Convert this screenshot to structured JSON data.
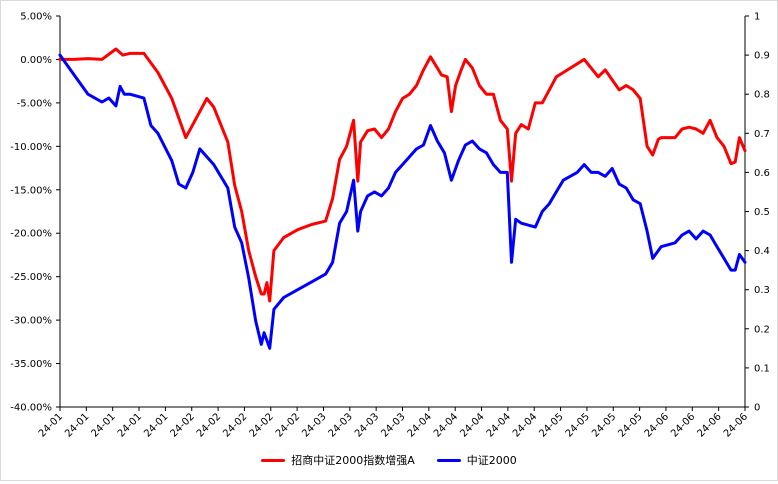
{
  "chart_data": {
    "type": "line",
    "grid": false,
    "legend_position": "bottom",
    "x_tick_labels": [
      "24-01",
      "24-01",
      "24-01",
      "24-01",
      "24-01",
      "24-02",
      "24-02",
      "24-02",
      "24-02",
      "24-02",
      "24-03",
      "24-03",
      "24-03",
      "24-03",
      "24-04",
      "24-04",
      "24-04",
      "24-04",
      "24-04",
      "24-05",
      "24-05",
      "24-05",
      "24-05",
      "24-06",
      "24-06",
      "24-06",
      "24-06"
    ],
    "y_left": {
      "ylim": [
        -0.4,
        0.05
      ],
      "ticks": [
        "5.00%",
        "0.00%",
        "-5.00%",
        "-10.00%",
        "-15.00%",
        "-20.00%",
        "-25.00%",
        "-30.00%",
        "-35.00%",
        "-40.00%"
      ]
    },
    "y_right": {
      "ylim": [
        0,
        1
      ],
      "ticks": [
        "1",
        "0.9",
        "0.8",
        "0.7",
        "0.6",
        "0.5",
        "0.4",
        "0.3",
        "0.2",
        "0.1",
        "0"
      ]
    },
    "series": [
      {
        "name": "招商中证2000指数增强A",
        "color": "#ff0000",
        "axis": "left",
        "points": [
          [
            0,
            0.0
          ],
          [
            1,
            0.0
          ],
          [
            2,
            0.001
          ],
          [
            3,
            0.0
          ],
          [
            4,
            0.012
          ],
          [
            4.5,
            0.005
          ],
          [
            5,
            0.007
          ],
          [
            6,
            0.007
          ],
          [
            7,
            -0.015
          ],
          [
            8,
            -0.045
          ],
          [
            9,
            -0.09
          ],
          [
            10,
            -0.06
          ],
          [
            10.5,
            -0.045
          ],
          [
            11,
            -0.055
          ],
          [
            12,
            -0.095
          ],
          [
            12.5,
            -0.145
          ],
          [
            13,
            -0.175
          ],
          [
            13.5,
            -0.22
          ],
          [
            14,
            -0.25
          ],
          [
            14.4,
            -0.27
          ],
          [
            14.6,
            -0.27
          ],
          [
            14.8,
            -0.257
          ],
          [
            15,
            -0.278
          ],
          [
            15.3,
            -0.22
          ],
          [
            16,
            -0.205
          ],
          [
            17,
            -0.196
          ],
          [
            18,
            -0.19
          ],
          [
            19,
            -0.186
          ],
          [
            19.5,
            -0.16
          ],
          [
            20,
            -0.115
          ],
          [
            20.5,
            -0.1
          ],
          [
            21,
            -0.07
          ],
          [
            21.3,
            -0.14
          ],
          [
            21.5,
            -0.095
          ],
          [
            22,
            -0.082
          ],
          [
            22.5,
            -0.08
          ],
          [
            23,
            -0.09
          ],
          [
            23.5,
            -0.08
          ],
          [
            24,
            -0.06
          ],
          [
            24.5,
            -0.045
          ],
          [
            25,
            -0.04
          ],
          [
            25.5,
            -0.03
          ],
          [
            26,
            -0.012
          ],
          [
            26.5,
            0.003
          ],
          [
            27,
            -0.01
          ],
          [
            27.3,
            -0.018
          ],
          [
            27.7,
            -0.02
          ],
          [
            28,
            -0.06
          ],
          [
            28.3,
            -0.03
          ],
          [
            28.7,
            -0.012
          ],
          [
            29,
            0.0
          ],
          [
            29.5,
            -0.01
          ],
          [
            30,
            -0.03
          ],
          [
            30.5,
            -0.04
          ],
          [
            31,
            -0.04
          ],
          [
            31.5,
            -0.07
          ],
          [
            32,
            -0.08
          ],
          [
            32.3,
            -0.14
          ],
          [
            32.6,
            -0.085
          ],
          [
            33,
            -0.075
          ],
          [
            33.5,
            -0.08
          ],
          [
            34,
            -0.05
          ],
          [
            34.5,
            -0.05
          ],
          [
            35,
            -0.035
          ],
          [
            35.5,
            -0.02
          ],
          [
            36,
            -0.015
          ],
          [
            37,
            -0.005
          ],
          [
            37.5,
            0.0
          ],
          [
            38,
            -0.01
          ],
          [
            38.5,
            -0.02
          ],
          [
            39,
            -0.012
          ],
          [
            40,
            -0.035
          ],
          [
            40.5,
            -0.03
          ],
          [
            41,
            -0.035
          ],
          [
            41.5,
            -0.045
          ],
          [
            42,
            -0.1
          ],
          [
            42.4,
            -0.11
          ],
          [
            42.8,
            -0.092
          ],
          [
            43,
            -0.09
          ],
          [
            44,
            -0.09
          ],
          [
            44.5,
            -0.08
          ],
          [
            45,
            -0.078
          ],
          [
            45.5,
            -0.08
          ],
          [
            46,
            -0.085
          ],
          [
            46.5,
            -0.07
          ],
          [
            47,
            -0.09
          ],
          [
            47.5,
            -0.1
          ],
          [
            48,
            -0.12
          ],
          [
            48.3,
            -0.118
          ],
          [
            48.6,
            -0.09
          ],
          [
            49,
            -0.105
          ]
        ]
      },
      {
        "name": "中证2000",
        "color": "#0000ff",
        "axis": "right",
        "points": [
          [
            0,
            0.9
          ],
          [
            1,
            0.85
          ],
          [
            2,
            0.8
          ],
          [
            3,
            0.78
          ],
          [
            3.5,
            0.79
          ],
          [
            4,
            0.77
          ],
          [
            4.3,
            0.82
          ],
          [
            4.6,
            0.8
          ],
          [
            5,
            0.8
          ],
          [
            6,
            0.79
          ],
          [
            6.5,
            0.72
          ],
          [
            7,
            0.7
          ],
          [
            8,
            0.63
          ],
          [
            8.5,
            0.57
          ],
          [
            9,
            0.56
          ],
          [
            9.5,
            0.6
          ],
          [
            10,
            0.66
          ],
          [
            10.5,
            0.64
          ],
          [
            11,
            0.62
          ],
          [
            12,
            0.56
          ],
          [
            12.5,
            0.46
          ],
          [
            13,
            0.42
          ],
          [
            13.5,
            0.33
          ],
          [
            14,
            0.22
          ],
          [
            14.4,
            0.16
          ],
          [
            14.6,
            0.19
          ],
          [
            15,
            0.15
          ],
          [
            15.3,
            0.25
          ],
          [
            16,
            0.28
          ],
          [
            17,
            0.3
          ],
          [
            18,
            0.32
          ],
          [
            19,
            0.34
          ],
          [
            19.5,
            0.37
          ],
          [
            20,
            0.47
          ],
          [
            20.5,
            0.5
          ],
          [
            21,
            0.58
          ],
          [
            21.3,
            0.45
          ],
          [
            21.5,
            0.5
          ],
          [
            22,
            0.54
          ],
          [
            22.5,
            0.55
          ],
          [
            23,
            0.54
          ],
          [
            23.5,
            0.56
          ],
          [
            24,
            0.6
          ],
          [
            24.5,
            0.62
          ],
          [
            25,
            0.64
          ],
          [
            25.5,
            0.66
          ],
          [
            26,
            0.67
          ],
          [
            26.5,
            0.72
          ],
          [
            27,
            0.68
          ],
          [
            27.5,
            0.65
          ],
          [
            28,
            0.58
          ],
          [
            28.5,
            0.63
          ],
          [
            29,
            0.67
          ],
          [
            29.5,
            0.68
          ],
          [
            30,
            0.66
          ],
          [
            30.5,
            0.65
          ],
          [
            31,
            0.62
          ],
          [
            31.5,
            0.6
          ],
          [
            32,
            0.6
          ],
          [
            32.3,
            0.37
          ],
          [
            32.6,
            0.48
          ],
          [
            33,
            0.47
          ],
          [
            34,
            0.46
          ],
          [
            34.5,
            0.5
          ],
          [
            35,
            0.52
          ],
          [
            35.5,
            0.55
          ],
          [
            36,
            0.58
          ],
          [
            37,
            0.6
          ],
          [
            37.5,
            0.62
          ],
          [
            38,
            0.6
          ],
          [
            38.5,
            0.6
          ],
          [
            39,
            0.59
          ],
          [
            39.5,
            0.61
          ],
          [
            40,
            0.57
          ],
          [
            40.5,
            0.56
          ],
          [
            41,
            0.53
          ],
          [
            41.5,
            0.52
          ],
          [
            42,
            0.45
          ],
          [
            42.4,
            0.38
          ],
          [
            42.8,
            0.4
          ],
          [
            43,
            0.41
          ],
          [
            44,
            0.42
          ],
          [
            44.5,
            0.44
          ],
          [
            45,
            0.45
          ],
          [
            45.5,
            0.43
          ],
          [
            46,
            0.45
          ],
          [
            46.5,
            0.44
          ],
          [
            47,
            0.41
          ],
          [
            47.5,
            0.38
          ],
          [
            48,
            0.35
          ],
          [
            48.3,
            0.35
          ],
          [
            48.6,
            0.39
          ],
          [
            49,
            0.37
          ]
        ]
      }
    ]
  }
}
